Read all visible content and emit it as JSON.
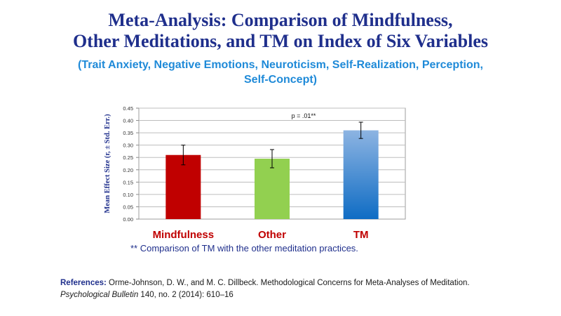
{
  "title": {
    "line1": "Meta-Analysis: Comparison of  Mindfulness,",
    "line2": "Other Meditations, and TM on Index of  Six Variables"
  },
  "subtitle": {
    "line1": "(Trait Anxiety, Negative Emotions, Neuroticism, Self-Realization, Perception,",
    "line2": "Self-Concept)"
  },
  "chart_data": {
    "type": "bar",
    "categories": [
      "Mindfulness",
      "Other",
      "TM"
    ],
    "values": [
      0.26,
      0.245,
      0.36
    ],
    "error_bars": [
      0.04,
      0.037,
      0.033
    ],
    "ylabel": "Mean Effect Size (r, ± Std. Err.)",
    "ylim": [
      0,
      0.45
    ],
    "yticks": [
      "0.00",
      "0.05",
      "0.10",
      "0.15",
      "0.20",
      "0.25",
      "0.30",
      "0.35",
      "0.40",
      "0.45"
    ],
    "annotation": "p = .01**",
    "grid": true,
    "bar_colors": [
      "#c00000",
      "#92d050",
      "#2e75b6"
    ],
    "category_label_colors": [
      "#c00000",
      "#c00000",
      "#c00000"
    ]
  },
  "footnote": "** Comparison of TM  with the other meditation practices.",
  "references": {
    "label": "References:",
    "text1": " Orme-Johnson, D. W., and M. C. Dillbeck. Methodological Concerns for Meta-Analyses of Meditation. ",
    "journal": "Psychological Bulletin",
    "text2": " 140, no. 2 (2014): 610–16"
  }
}
